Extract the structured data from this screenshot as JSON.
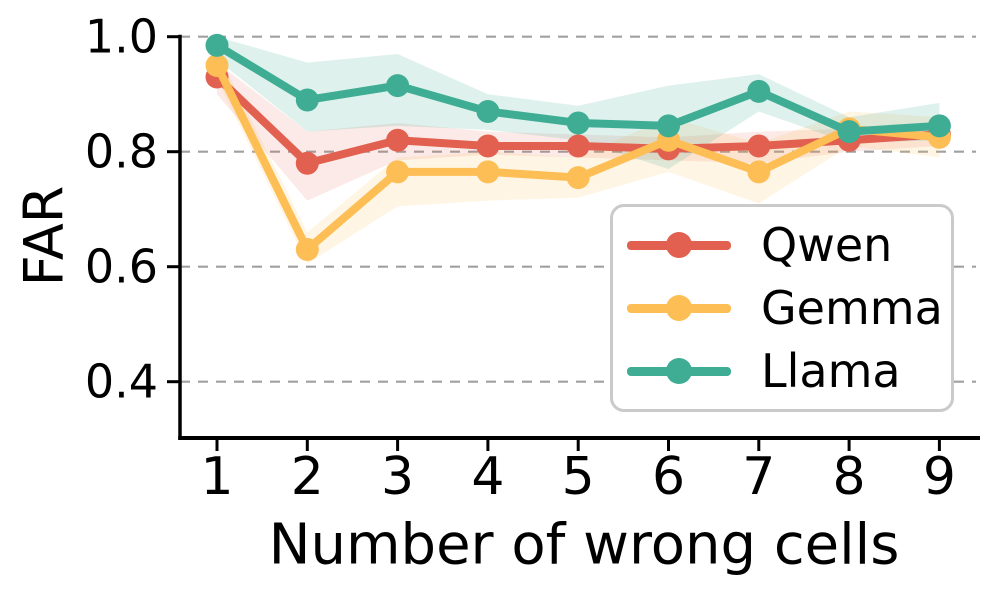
{
  "chart_data": {
    "type": "line",
    "title": "",
    "xlabel": "Number of wrong cells",
    "ylabel": "FAR",
    "x": [
      1,
      2,
      3,
      4,
      5,
      6,
      7,
      8,
      9
    ],
    "xtick_labels": [
      "1",
      "2",
      "3",
      "4",
      "5",
      "6",
      "7",
      "8",
      "9"
    ],
    "ytick_values": [
      1.0,
      0.8,
      0.6,
      0.4
    ],
    "ytick_labels": [
      "1.0",
      "0.8",
      "0.6",
      "0.4"
    ],
    "ylim": [
      0.302,
      1.0
    ],
    "xlim": [
      0.59,
      9.41
    ],
    "grid": {
      "axis": "y",
      "style": "dashed",
      "color": "#a0a0a0"
    },
    "legend": {
      "position": "inside lower right"
    },
    "series": [
      {
        "name": "Qwen",
        "color": "#E2604F",
        "band_opacity": 0.13,
        "values": [
          0.93,
          0.78,
          0.82,
          0.81,
          0.81,
          0.805,
          0.81,
          0.82,
          0.83
        ],
        "band_lower": [
          0.9,
          0.715,
          0.785,
          0.795,
          0.79,
          0.785,
          0.78,
          0.8,
          0.81
        ],
        "band_upper": [
          0.955,
          0.835,
          0.85,
          0.835,
          0.83,
          0.825,
          0.835,
          0.84,
          0.85
        ]
      },
      {
        "name": "Gemma",
        "color": "#FDBE55",
        "band_opacity": 0.16,
        "values": [
          0.95,
          0.63,
          0.765,
          0.765,
          0.755,
          0.82,
          0.765,
          0.84,
          0.825
        ],
        "band_lower": [
          0.925,
          0.605,
          0.705,
          0.715,
          0.72,
          0.765,
          0.71,
          0.81,
          0.79
        ],
        "band_upper": [
          0.975,
          0.66,
          0.79,
          0.8,
          0.79,
          0.86,
          0.815,
          0.87,
          0.86
        ]
      },
      {
        "name": "Llama",
        "color": "#3FAD94",
        "band_opacity": 0.17,
        "values": [
          0.985,
          0.89,
          0.915,
          0.87,
          0.85,
          0.845,
          0.905,
          0.835,
          0.845
        ],
        "band_lower": [
          0.96,
          0.835,
          0.845,
          0.838,
          0.82,
          0.77,
          0.87,
          0.815,
          0.82
        ],
        "band_upper": [
          1.0,
          0.955,
          0.97,
          0.9,
          0.88,
          0.915,
          0.935,
          0.86,
          0.885
        ]
      }
    ],
    "style": {
      "background": "#ffffff",
      "spine_color": "#000000",
      "tick_color": "#000000",
      "legend_border_color": "#cacaca",
      "line_width": 8,
      "marker_radius": 11.5
    }
  }
}
